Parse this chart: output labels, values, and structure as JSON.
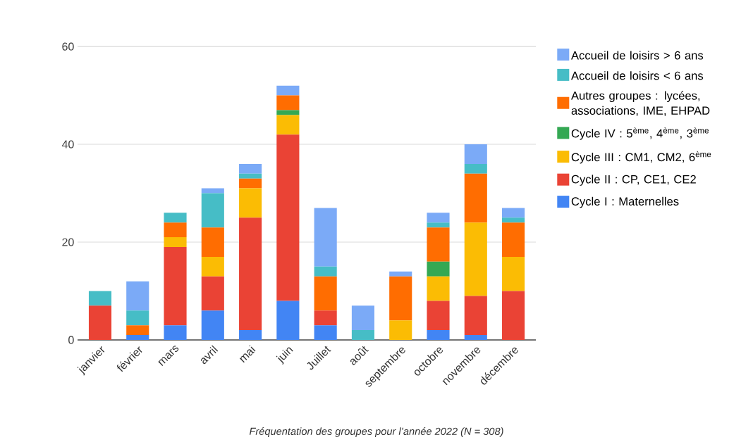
{
  "chart_data": {
    "type": "bar",
    "stacked": true,
    "categories": [
      "janvier",
      "février",
      "mars",
      "avril",
      "mai",
      "juin",
      "Juillet",
      "août",
      "septembre",
      "octobre",
      "novembre",
      "décembre"
    ],
    "series": [
      {
        "name": "Cycle I : Maternelles",
        "color": "#4285f4",
        "values": [
          0,
          1,
          3,
          6,
          2,
          8,
          3,
          0,
          0,
          2,
          1,
          0
        ]
      },
      {
        "name": "Cycle II : CP, CE1, CE2",
        "color": "#ea4335",
        "values": [
          7,
          0,
          16,
          7,
          23,
          34,
          3,
          0,
          0,
          6,
          8,
          10
        ]
      },
      {
        "name": "Cycle III : CM1, CM2, 6$^{ème}$",
        "color": "#fbbc04",
        "values": [
          0,
          0,
          2,
          4,
          6,
          4,
          0,
          0,
          4,
          5,
          15,
          7
        ]
      },
      {
        "name": "Cycle IV : 5$^{ème}$, 4$^{ème}$, 3$^{ème}$",
        "color": "#34a853",
        "values": [
          0,
          0,
          0,
          0,
          0,
          1,
          0,
          0,
          0,
          3,
          0,
          0
        ]
      },
      {
        "name": "Autres groupes : lycées, associations, IME, EHPAD",
        "color": "#ff6d01",
        "values": [
          0,
          2,
          3,
          6,
          2,
          3,
          7,
          0,
          9,
          7,
          10,
          7
        ]
      },
      {
        "name": "Accueil de loisirs < 6 ans",
        "color": "#46bdc6",
        "values": [
          3,
          3,
          2,
          7,
          1,
          0,
          2,
          2,
          0,
          1,
          2,
          1
        ]
      },
      {
        "name": "Accueil de loisirs > 6 ans",
        "color": "#7baaf7",
        "values": [
          0,
          6,
          0,
          1,
          2,
          2,
          12,
          5,
          1,
          2,
          4,
          2
        ]
      }
    ],
    "ylim": [
      0,
      60
    ],
    "yticks": [
      0,
      20,
      40,
      60
    ],
    "grid": "y",
    "legend": "right",
    "annotations": [
      "*Fréquentation des groupes pour l’année 2022 (N = 308)*"
    ]
  }
}
